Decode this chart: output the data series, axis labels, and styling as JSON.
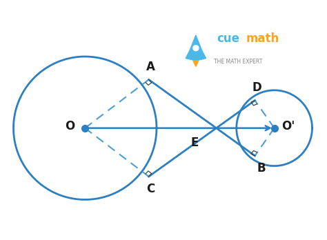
{
  "bg_color": "#ffffff",
  "circle_color": "#2b7fc2",
  "line_color": "#2b7fc2",
  "dashed_color": "#4a9fd4",
  "text_color": "#1a1a1a",
  "O": [
    -1.8,
    0.0
  ],
  "O_prime": [
    2.3,
    0.0
  ],
  "r_large": 1.55,
  "r_small": 0.82,
  "E": [
    0.55,
    0.0
  ],
  "A": [
    -0.42,
    1.05
  ],
  "C": [
    -0.42,
    -1.05
  ],
  "D": [
    1.88,
    0.6
  ],
  "B": [
    1.88,
    -0.6
  ],
  "label_O": "O",
  "label_Op": "O'",
  "label_E": "E",
  "label_A": "A",
  "label_C": "C",
  "label_D": "D",
  "label_B": "B",
  "cue_color": "#4ab8e8",
  "math_color": "#f5a623",
  "sub_color": "#888888",
  "rocket_body_color": "#4ab8e8",
  "rocket_flame_color": "#f5a623"
}
